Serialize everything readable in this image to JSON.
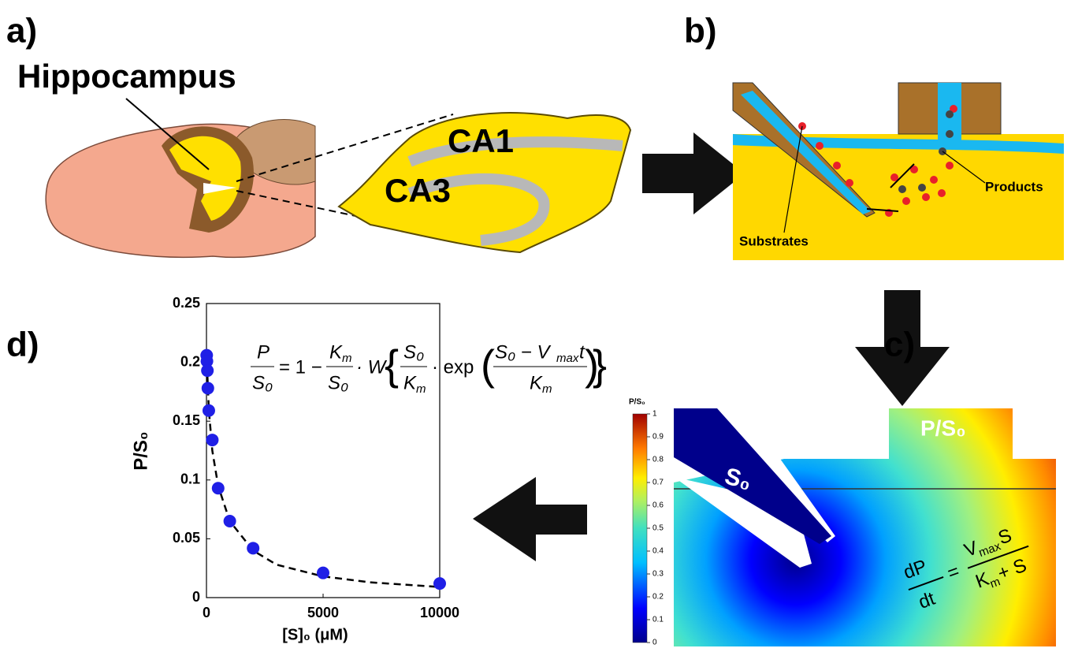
{
  "panels": {
    "a": {
      "label": "a)",
      "title": "Hippocampus",
      "regions": [
        "CA1",
        "CA3"
      ]
    },
    "b": {
      "label": "b)",
      "annotations": [
        "Products",
        "Substrates"
      ]
    },
    "c": {
      "label": "c)",
      "pipette_label": "S₀",
      "outlet_label": "P/S₀",
      "colorbar": {
        "title": "P/S₀",
        "range": [
          0,
          1
        ],
        "ticks": [
          0,
          0.1,
          0.2,
          0.3,
          0.4,
          0.5,
          0.6,
          0.7,
          0.8,
          0.9,
          1
        ]
      },
      "equation": {
        "lhs_numerator": "dP",
        "lhs_denominator": "dt",
        "equals": "=",
        "rhs_numerator": [
          "V",
          "max",
          "S"
        ],
        "rhs_denominator": [
          "K",
          "m",
          "+ S"
        ]
      }
    },
    "d": {
      "label": "d)",
      "equation": [
        "P",
        "S₀",
        "= 1 −",
        "K",
        "m",
        "S₀",
        "· W",
        "{",
        "S₀",
        "K",
        "m",
        "· exp",
        "(",
        "S₀ − V",
        "max",
        "t",
        "K",
        "m",
        ")",
        "}"
      ]
    }
  },
  "chart_data": {
    "type": "scatter",
    "xlabel": "[S]₀ (μM)",
    "ylabel": "P/S₀",
    "xlim": [
      0,
      10000
    ],
    "xticks": [
      0,
      5000,
      10000
    ],
    "ylim": [
      0,
      0.25
    ],
    "yticks": [
      0,
      0.05,
      0.1,
      0.15,
      0.2,
      0.25
    ],
    "series": [
      {
        "type": "scatter",
        "color": "#1f1fe6",
        "x": [
          10,
          20,
          40,
          60,
          100,
          250,
          500,
          1000,
          2000,
          5000,
          10000
        ],
        "values": [
          0.206,
          0.201,
          0.193,
          0.178,
          0.159,
          0.134,
          0.093,
          0.065,
          0.042,
          0.021,
          0.012
        ]
      },
      {
        "type": "line",
        "color": "#000000",
        "dashed": true,
        "x": [
          0,
          100,
          250,
          500,
          1000,
          2000,
          3000,
          5000,
          7000,
          10000
        ],
        "values": [
          0.208,
          0.16,
          0.125,
          0.095,
          0.065,
          0.04,
          0.028,
          0.018,
          0.013,
          0.009
        ]
      }
    ]
  }
}
